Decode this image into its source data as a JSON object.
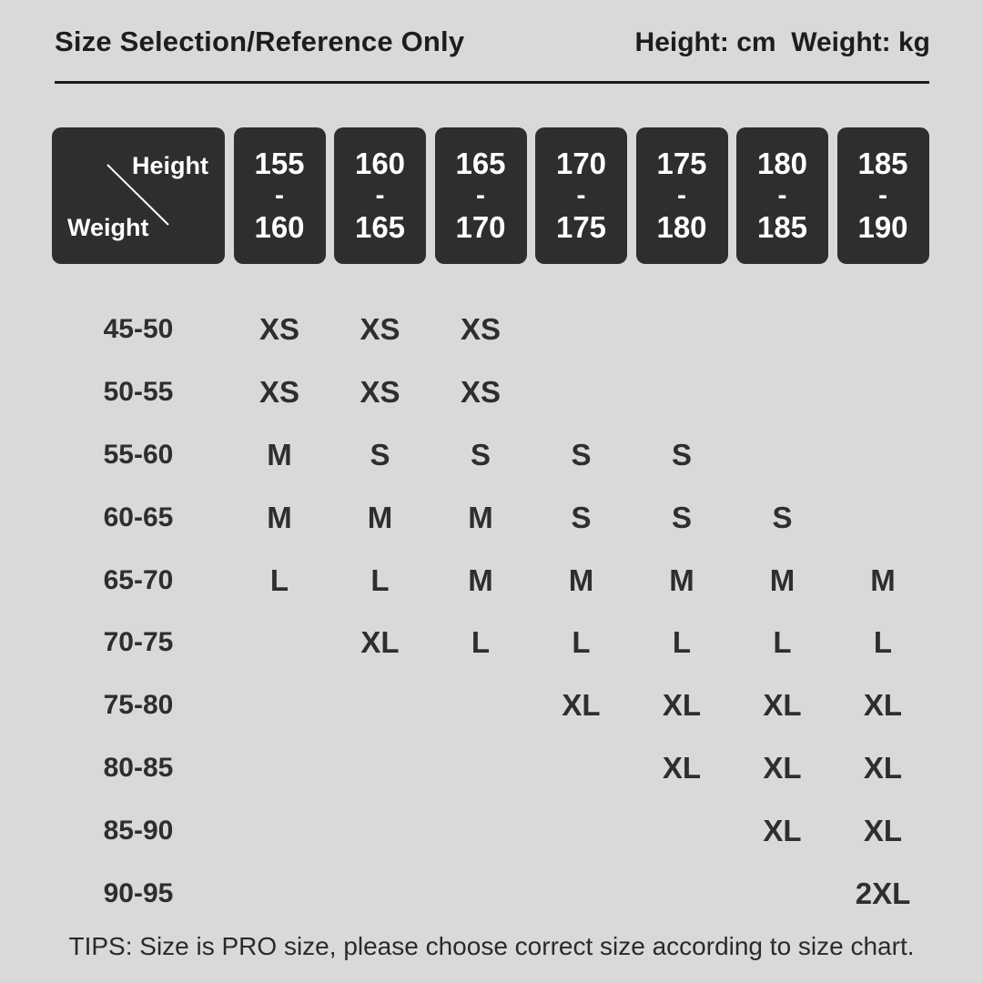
{
  "page": {
    "title": "Size Selection/Reference Only",
    "units": "Height: cm  Weight: kg",
    "tips": "TIPS: Size is PRO size, please choose correct size according to size chart."
  },
  "table": {
    "corner": {
      "top_label": "Height",
      "bottom_label": "Weight"
    },
    "height_columns": [
      {
        "lines": [
          "155",
          "-",
          "160"
        ]
      },
      {
        "lines": [
          "160",
          "-",
          "165"
        ]
      },
      {
        "lines": [
          "165",
          "-",
          "170"
        ]
      },
      {
        "lines": [
          "170",
          "-",
          "175"
        ]
      },
      {
        "lines": [
          "175",
          "-",
          "180"
        ]
      },
      {
        "lines": [
          "180",
          "-",
          "185"
        ]
      },
      {
        "lines": [
          "185",
          "-",
          "190"
        ]
      }
    ],
    "rows": [
      {
        "weight": "45-50",
        "sizes": [
          "XS",
          "XS",
          "XS",
          "",
          "",
          "",
          ""
        ]
      },
      {
        "weight": "50-55",
        "sizes": [
          "XS",
          "XS",
          "XS",
          "",
          "",
          "",
          ""
        ]
      },
      {
        "weight": "55-60",
        "sizes": [
          "M",
          "S",
          "S",
          "S",
          "S",
          "",
          ""
        ]
      },
      {
        "weight": "60-65",
        "sizes": [
          "M",
          "M",
          "M",
          "S",
          "S",
          "S",
          ""
        ]
      },
      {
        "weight": "65-70",
        "sizes": [
          "L",
          "L",
          "M",
          "M",
          "M",
          "M",
          "M"
        ]
      },
      {
        "weight": "70-75",
        "sizes": [
          "",
          "XL",
          "L",
          "L",
          "L",
          "L",
          "L"
        ]
      },
      {
        "weight": "75-80",
        "sizes": [
          "",
          "",
          "",
          "XL",
          "XL",
          "XL",
          "XL"
        ]
      },
      {
        "weight": "80-85",
        "sizes": [
          "",
          "",
          "",
          "",
          "XL",
          "XL",
          "XL"
        ]
      },
      {
        "weight": "85-90",
        "sizes": [
          "",
          "",
          "",
          "",
          "",
          "XL",
          "XL"
        ]
      },
      {
        "weight": "90-95",
        "sizes": [
          "",
          "",
          "",
          "",
          "",
          "",
          "2XL"
        ]
      }
    ]
  },
  "chart_data": {
    "type": "table",
    "title": "Size Selection/Reference Only",
    "units": {
      "height": "cm",
      "weight": "kg"
    },
    "columns_height_cm": [
      "155-160",
      "160-165",
      "165-170",
      "170-175",
      "175-180",
      "180-185",
      "185-190"
    ],
    "rows_weight_kg": [
      "45-50",
      "50-55",
      "55-60",
      "60-65",
      "65-70",
      "70-75",
      "75-80",
      "80-85",
      "85-90",
      "90-95"
    ],
    "cells": [
      [
        "XS",
        "XS",
        "XS",
        "",
        "",
        "",
        ""
      ],
      [
        "XS",
        "XS",
        "XS",
        "",
        "",
        "",
        ""
      ],
      [
        "M",
        "S",
        "S",
        "S",
        "S",
        "",
        ""
      ],
      [
        "M",
        "M",
        "M",
        "S",
        "S",
        "S",
        ""
      ],
      [
        "L",
        "L",
        "M",
        "M",
        "M",
        "M",
        "M"
      ],
      [
        "",
        "XL",
        "L",
        "L",
        "L",
        "L",
        "L"
      ],
      [
        "",
        "",
        "",
        "XL",
        "XL",
        "XL",
        "XL"
      ],
      [
        "",
        "",
        "",
        "",
        "XL",
        "XL",
        "XL"
      ],
      [
        "",
        "",
        "",
        "",
        "",
        "XL",
        "XL"
      ],
      [
        "",
        "",
        "",
        "",
        "",
        "",
        "2XL"
      ]
    ],
    "note": "TIPS: Size is PRO size, please choose correct size according to size chart."
  },
  "colors": {
    "background": "#d9d9d9",
    "header_box": "#2e2e30",
    "header_box_text": "#ffffff",
    "text": "#2e2e2e"
  }
}
